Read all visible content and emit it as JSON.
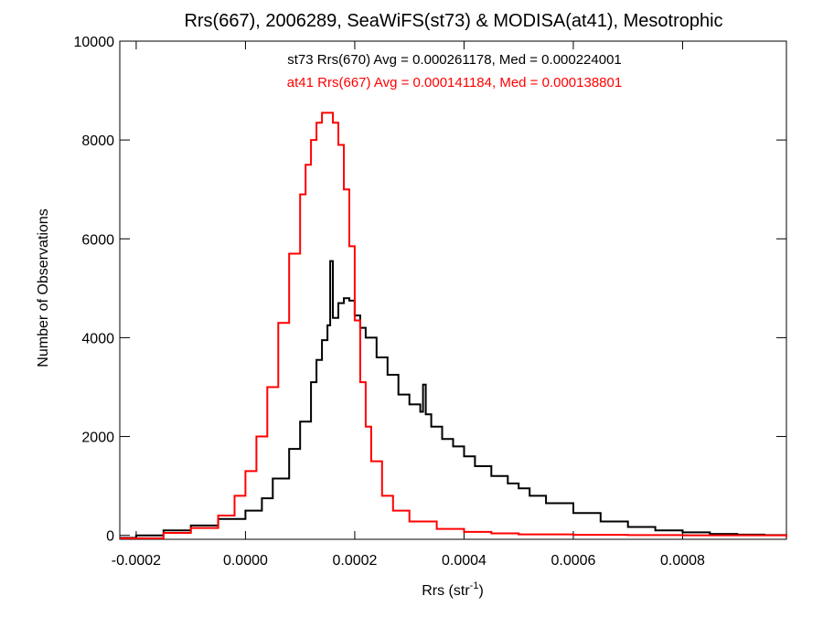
{
  "chart_data": {
    "type": "line",
    "title": "Rrs(667), 2006289, SeaWiFS(st73) & MODISA(at41), Mesotrophic",
    "xlabel_base": "Rrs (str",
    "xlabel_sup": "-1",
    "xlabel_tail": ")",
    "ylabel": "Number of Observations",
    "xlim": [
      -0.00023,
      0.00099
    ],
    "ylim": [
      -80,
      10000
    ],
    "x_ticks": [
      {
        "value": -0.0002,
        "label": "-0.0002"
      },
      {
        "value": 0.0,
        "label": "0.0000"
      },
      {
        "value": 0.0002,
        "label": "0.0002"
      },
      {
        "value": 0.0004,
        "label": "0.0004"
      },
      {
        "value": 0.0006,
        "label": "0.0006"
      },
      {
        "value": 0.0008,
        "label": "0.0008"
      }
    ],
    "y_ticks": [
      {
        "value": 0,
        "label": "0"
      },
      {
        "value": 2000,
        "label": "2000"
      },
      {
        "value": 4000,
        "label": "4000"
      },
      {
        "value": 6000,
        "label": "6000"
      },
      {
        "value": 8000,
        "label": "8000"
      },
      {
        "value": 10000,
        "label": "10000"
      }
    ],
    "series": [
      {
        "name": "st73",
        "color": "#000000",
        "annotation": "st73 Rrs(670) Avg = 0.000261178, Med = 0.000224001",
        "x": [
          -0.00023,
          -0.0002,
          -0.00015,
          -0.0001,
          -5e-05,
          0.0,
          3e-05,
          5e-05,
          8e-05,
          0.0001,
          0.00012,
          0.00013,
          0.00014,
          0.00015,
          0.000155,
          0.00016,
          0.00017,
          0.00018,
          0.00019,
          0.0002,
          0.00021,
          0.00022,
          0.00024,
          0.00026,
          0.00028,
          0.0003,
          0.00032,
          0.000325,
          0.00033,
          0.00034,
          0.00036,
          0.00038,
          0.0004,
          0.00042,
          0.00045,
          0.00048,
          0.0005,
          0.00052,
          0.00055,
          0.0006,
          0.00065,
          0.0007,
          0.00075,
          0.0008,
          0.00085,
          0.0009,
          0.00095,
          0.00099
        ],
        "y": [
          -50,
          0,
          100,
          200,
          330,
          500,
          750,
          1150,
          1750,
          2300,
          3100,
          3550,
          3950,
          4250,
          5550,
          4400,
          4700,
          4800,
          4750,
          4450,
          4200,
          4000,
          3600,
          3250,
          2850,
          2650,
          2500,
          3050,
          2450,
          2200,
          1950,
          1800,
          1600,
          1400,
          1200,
          1050,
          950,
          800,
          650,
          450,
          280,
          170,
          100,
          60,
          30,
          15,
          5,
          -30
        ]
      },
      {
        "name": "at41",
        "color": "#ff0000",
        "annotation": "at41 Rrs(667) Avg = 0.000141184, Med = 0.000138801",
        "x": [
          -0.00023,
          -0.00015,
          -0.0001,
          -5e-05,
          -2e-05,
          0.0,
          2e-05,
          4e-05,
          6e-05,
          8e-05,
          0.0001,
          0.00011,
          0.00012,
          0.00013,
          0.00014,
          0.00015,
          0.00016,
          0.00017,
          0.00018,
          0.00019,
          0.0002,
          0.00021,
          0.00022,
          0.00023,
          0.00025,
          0.00027,
          0.0003,
          0.00035,
          0.0004,
          0.00045,
          0.0005,
          0.0006,
          0.0007,
          0.0008,
          0.00099
        ],
        "y": [
          -60,
          50,
          150,
          400,
          800,
          1300,
          2000,
          3000,
          4300,
          5700,
          6900,
          7500,
          8000,
          8350,
          8550,
          8550,
          8350,
          7900,
          7000,
          5850,
          4350,
          3100,
          2200,
          1500,
          800,
          500,
          280,
          130,
          70,
          40,
          20,
          10,
          5,
          2,
          -40
        ]
      }
    ]
  }
}
